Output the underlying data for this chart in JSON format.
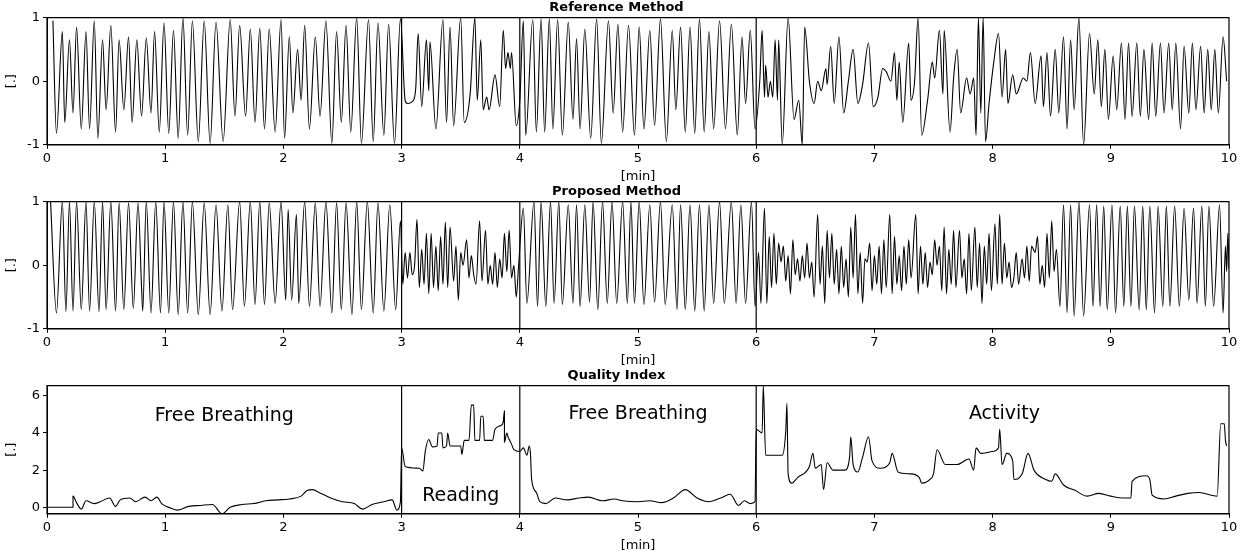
{
  "chart_data": [
    {
      "type": "line",
      "title": "Reference Method",
      "xlabel": "[min]",
      "ylabel": "[.]",
      "color": "#000000",
      "marker": "none",
      "grid": false,
      "xlim": [
        0,
        10
      ],
      "xticks": [
        0,
        1,
        2,
        3,
        4,
        5,
        6,
        7,
        8,
        9,
        10
      ],
      "ylim": [
        -1,
        1
      ],
      "yticks": [
        -1,
        0,
        1
      ],
      "ref_lines": [
        {
          "axis": "x",
          "value": 3
        },
        {
          "axis": "x",
          "value": 4
        },
        {
          "axis": "x",
          "value": 6
        }
      ],
      "x": [
        0.05,
        0.08,
        0.13,
        0.15,
        0.19,
        0.22,
        0.25,
        0.29,
        0.33,
        0.36,
        0.4,
        0.43,
        0.47,
        0.5,
        0.54,
        0.58,
        0.61,
        0.65,
        0.69,
        0.72,
        0.76,
        0.8,
        0.84,
        0.88,
        0.91,
        0.95,
        0.99,
        1.03,
        1.07,
        1.11,
        1.15,
        1.19,
        1.23,
        1.28,
        1.33,
        1.38,
        1.43,
        1.49,
        1.55,
        1.59,
        1.63,
        1.68,
        1.72,
        1.76,
        1.8,
        1.84,
        1.88,
        1.93,
        1.98,
        2.01,
        2.05,
        2.08,
        2.12,
        2.15,
        2.18,
        2.22,
        2.27,
        2.31,
        2.36,
        2.41,
        2.45,
        2.49,
        2.53,
        2.57,
        2.62,
        2.66,
        2.72,
        2.76,
        2.8,
        2.85,
        2.89,
        2.94,
        2.99,
        3.03,
        3.05,
        3.1,
        3.12,
        3.14,
        3.17,
        3.21,
        3.23,
        3.24,
        3.29,
        3.35,
        3.38,
        3.41,
        3.44,
        3.5,
        3.53,
        3.58,
        3.62,
        3.64,
        3.67,
        3.69,
        3.72,
        3.74,
        3.79,
        3.83,
        3.86,
        3.88,
        3.9,
        3.92,
        3.93,
        3.97,
        4.0,
        4.03,
        4.05,
        4.11,
        4.14,
        4.18,
        4.21,
        4.25,
        4.28,
        4.32,
        4.36,
        4.41,
        4.45,
        4.48,
        4.51,
        4.55,
        4.6,
        4.65,
        4.69,
        4.75,
        4.79,
        4.83,
        4.87,
        4.92,
        4.97,
        5.01,
        5.05,
        5.1,
        5.14,
        5.19,
        5.24,
        5.29,
        5.32,
        5.36,
        5.4,
        5.44,
        5.48,
        5.52,
        5.56,
        5.6,
        5.64,
        5.69,
        5.74,
        5.79,
        5.84,
        5.88,
        5.91,
        5.95,
        5.99,
        6.03,
        6.05,
        6.07,
        6.08,
        6.1,
        6.12,
        6.14,
        6.16,
        6.18,
        6.19,
        6.22,
        6.27,
        6.32,
        6.36,
        6.39,
        6.41,
        6.45,
        6.49,
        6.52,
        6.55,
        6.59,
        6.6,
        6.63,
        6.66,
        6.7,
        6.74,
        6.78,
        6.82,
        6.86,
        6.9,
        6.95,
        6.99,
        7.03,
        7.07,
        7.1,
        7.14,
        7.17,
        7.19,
        7.21,
        7.24,
        7.29,
        7.31,
        7.34,
        7.37,
        7.4,
        7.45,
        7.49,
        7.51,
        7.55,
        7.58,
        7.59,
        7.64,
        7.67,
        7.7,
        7.73,
        7.78,
        7.81,
        7.84,
        7.86,
        7.88,
        7.9,
        7.92,
        7.94,
        7.97,
        8.01,
        8.05,
        8.08,
        8.11,
        8.13,
        8.17,
        8.2,
        8.26,
        8.29,
        8.32,
        8.36,
        8.41,
        8.43,
        8.46,
        8.49,
        8.53,
        8.56,
        8.6,
        8.63,
        8.66,
        8.69,
        8.73,
        8.77,
        8.82,
        8.86,
        8.89,
        8.92,
        8.95,
        8.98,
        9.02,
        9.05,
        9.09,
        9.12,
        9.15,
        9.18,
        9.22,
        9.25,
        9.28,
        9.32,
        9.35,
        9.38,
        9.42,
        9.45,
        9.49,
        9.52,
        9.55,
        9.59,
        9.62,
        9.66,
        9.69,
        9.72,
        9.76,
        9.79,
        9.82,
        9.85,
        9.88,
        9.91,
        9.95,
        9.98
      ],
      "values": [
        0.95,
        -0.82,
        0.78,
        -0.65,
        0.65,
        -0.5,
        0.85,
        -0.75,
        0.78,
        -0.75,
        0.95,
        -0.9,
        0.65,
        -0.45,
        0.88,
        -0.8,
        0.65,
        -0.45,
        0.7,
        -0.65,
        0.65,
        -0.55,
        0.68,
        -0.5,
        0.78,
        -0.8,
        0.92,
        -0.82,
        0.8,
        -0.9,
        1.0,
        -0.85,
        0.95,
        -0.95,
        0.95,
        -0.98,
        0.93,
        -0.95,
        0.97,
        -0.55,
        0.88,
        -0.55,
        0.82,
        -0.65,
        0.83,
        -0.75,
        0.82,
        -0.8,
        0.97,
        -0.9,
        0.7,
        -0.5,
        0.5,
        -0.3,
        0.88,
        -0.75,
        0.7,
        -0.55,
        0.95,
        -0.98,
        0.78,
        -0.65,
        0.88,
        -0.8,
        1.0,
        -0.98,
        0.97,
        -0.95,
        0.92,
        -0.85,
        0.9,
        -0.98,
        0.98,
        -0.3,
        -0.35,
        -0.3,
        -0.1,
        0.75,
        -0.4,
        0.65,
        -0.15,
        0.62,
        -0.75,
        0.97,
        -0.65,
        0.85,
        -0.7,
        1.0,
        -0.65,
        -0.2,
        1.0,
        -0.3,
        0.65,
        -0.45,
        -0.25,
        -0.45,
        0.1,
        -0.4,
        0.8,
        0.2,
        0.45,
        0.2,
        0.45,
        -0.7,
        -0.3,
        0.95,
        -0.85,
        0.97,
        -0.8,
        0.98,
        -0.8,
        0.98,
        -0.75,
        0.97,
        -0.85,
        0.93,
        -0.6,
        0.67,
        -0.75,
        0.82,
        -0.9,
        0.98,
        -0.98,
        0.95,
        -0.5,
        0.9,
        -0.8,
        0.88,
        -0.85,
        0.85,
        -0.75,
        0.8,
        -0.7,
        0.98,
        -0.95,
        0.8,
        -0.45,
        0.85,
        -0.8,
        0.85,
        -0.82,
        0.98,
        -0.8,
        0.78,
        -0.75,
        0.95,
        -0.75,
        0.9,
        -0.85,
        0.7,
        -0.35,
        0.8,
        -0.75,
        0.0,
        0.8,
        -0.25,
        0.25,
        -0.25,
        0.0,
        -0.25,
        0.65,
        -0.3,
        0.65,
        -1.0,
        1.0,
        -0.6,
        -0.3,
        -1.0,
        0.85,
        0.0,
        -0.35,
        0.0,
        -0.15,
        0.2,
        -0.05,
        0.55,
        -0.35,
        0.7,
        -0.5,
        0.0,
        0.5,
        -0.35,
        -0.05,
        0.6,
        -0.4,
        -0.25,
        0.2,
        0.15,
        0.0,
        0.45,
        -0.3,
        0.3,
        -0.65,
        0.6,
        -0.3,
        0.0,
        1.0,
        -0.85,
        -0.3,
        0.3,
        0.05,
        0.8,
        -0.2,
        0.8,
        -0.8,
        0.05,
        0.5,
        -0.5,
        0.05,
        -0.2,
        0.05,
        -0.85,
        1.0,
        -0.5,
        1.0,
        -0.95,
        -0.35,
        0.3,
        0.75,
        -0.25,
        0.5,
        -0.35,
        0.1,
        -0.2,
        0.05,
        0.0,
        0.45,
        -0.35,
        0.4,
        -0.4,
        0.45,
        -0.55,
        0.5,
        -0.5,
        0.7,
        -0.75,
        0.65,
        -0.45,
        1.0,
        -1.0,
        0.75,
        -0.2,
        0.65,
        -0.4,
        0.5,
        -0.6,
        0.4,
        -0.45,
        0.6,
        -0.6,
        0.6,
        -0.55,
        0.6,
        -0.55,
        0.5,
        -0.6,
        0.6,
        -0.55,
        0.6,
        -0.5,
        0.6,
        -0.45,
        0.6,
        -0.75,
        0.55,
        -0.5,
        0.6,
        -0.45,
        0.55,
        -0.5,
        0.5,
        -0.45,
        0.5,
        -0.5,
        0.7,
        0.0
      ]
    },
    {
      "type": "line",
      "title": "Proposed Method",
      "xlabel": "[min]",
      "ylabel": "[.]",
      "color": "#000000",
      "marker": "none",
      "grid": false,
      "xlim": [
        0,
        10
      ],
      "xticks": [
        0,
        1,
        2,
        3,
        4,
        5,
        6,
        7,
        8,
        9,
        10
      ],
      "ylim": [
        -1,
        1
      ],
      "yticks": [
        -1,
        0,
        1
      ],
      "ref_lines": [
        {
          "axis": "x",
          "value": 3
        },
        {
          "axis": "x",
          "value": 4
        },
        {
          "axis": "x",
          "value": 6
        }
      ],
      "x": [
        0.03,
        0.08,
        0.13,
        0.16,
        0.19,
        0.22,
        0.25,
        0.29,
        0.33,
        0.36,
        0.4,
        0.44,
        0.47,
        0.5,
        0.54,
        0.58,
        0.61,
        0.65,
        0.69,
        0.73,
        0.77,
        0.8,
        0.81,
        0.84,
        0.88,
        0.92,
        0.96,
        0.99,
        1.03,
        1.07,
        1.11,
        1.15,
        1.19,
        1.23,
        1.28,
        1.33,
        1.38,
        1.43,
        1.48,
        1.53,
        1.57,
        1.63,
        1.67,
        1.72,
        1.76,
        1.8,
        1.84,
        1.88,
        1.93,
        1.98,
        2.02,
        2.04,
        2.07,
        2.11,
        2.13,
        2.18,
        2.22,
        2.27,
        2.31,
        2.36,
        2.41,
        2.45,
        2.49,
        2.53,
        2.58,
        2.62,
        2.66,
        2.71,
        2.76,
        2.8,
        2.85,
        2.9,
        2.95,
        2.99,
        3.01,
        3.03,
        3.05,
        3.07,
        3.09,
        3.11,
        3.13,
        3.15,
        3.17,
        3.19,
        3.21,
        3.23,
        3.25,
        3.27,
        3.29,
        3.31,
        3.33,
        3.35,
        3.37,
        3.39,
        3.41,
        3.44,
        3.46,
        3.48,
        3.5,
        3.52,
        3.55,
        3.57,
        3.59,
        3.61,
        3.63,
        3.66,
        3.68,
        3.71,
        3.73,
        3.75,
        3.77,
        3.79,
        3.81,
        3.83,
        3.85,
        3.87,
        3.89,
        3.91,
        3.93,
        3.95,
        3.97,
        3.99,
        4.03,
        4.06,
        4.12,
        4.15,
        4.18,
        4.22,
        4.26,
        4.29,
        4.33,
        4.36,
        4.41,
        4.45,
        4.48,
        4.51,
        4.55,
        4.59,
        4.62,
        4.66,
        4.7,
        4.74,
        4.78,
        4.82,
        4.87,
        4.91,
        4.94,
        4.97,
        5.01,
        5.05,
        5.1,
        5.14,
        5.19,
        5.23,
        5.29,
        5.33,
        5.36,
        5.4,
        5.44,
        5.48,
        5.52,
        5.56,
        5.6,
        5.64,
        5.69,
        5.73,
        5.79,
        5.83,
        5.87,
        5.91,
        5.96,
        5.99,
        6.02,
        6.04,
        6.07,
        6.09,
        6.11,
        6.13,
        6.15,
        6.17,
        6.19,
        6.21,
        6.23,
        6.25,
        6.27,
        6.29,
        6.31,
        6.33,
        6.35,
        6.37,
        6.39,
        6.41,
        6.43,
        6.45,
        6.47,
        6.49,
        6.52,
        6.54,
        6.56,
        6.58,
        6.6,
        6.62,
        6.64,
        6.66,
        6.68,
        6.7,
        6.72,
        6.74,
        6.76,
        6.78,
        6.8,
        6.82,
        6.84,
        6.86,
        6.88,
        6.9,
        6.92,
        6.94,
        6.96,
        6.98,
        7.0,
        7.02,
        7.04,
        7.06,
        7.08,
        7.1,
        7.13,
        7.15,
        7.17,
        7.19,
        7.21,
        7.23,
        7.25,
        7.27,
        7.29,
        7.31,
        7.35,
        7.37,
        7.39,
        7.41,
        7.43,
        7.45,
        7.47,
        7.49,
        7.51,
        7.53,
        7.55,
        7.57,
        7.59,
        7.61,
        7.63,
        7.65,
        7.67,
        7.69,
        7.72,
        7.74,
        7.76,
        7.78,
        7.8,
        7.82,
        7.85,
        7.87,
        7.89,
        7.91,
        7.93,
        7.95,
        7.97,
        7.99,
        8.02,
        8.04,
        8.06,
        8.08,
        8.1,
        8.12,
        8.14,
        8.16,
        8.18,
        8.2,
        8.22,
        8.25,
        8.27,
        8.29,
        8.31,
        8.33,
        8.36,
        8.38,
        8.4,
        8.42,
        8.44,
        8.46,
        8.48,
        8.5,
        8.52,
        8.54,
        8.57,
        8.6,
        8.63,
        8.66,
        8.69,
        8.73,
        8.77,
        8.82,
        8.85,
        8.88,
        8.91,
        8.94,
        8.97,
        9.01,
        9.04,
        9.08,
        9.11,
        9.14,
        9.17,
        9.2,
        9.24,
        9.27,
        9.3,
        9.33,
        9.37,
        9.4,
        9.44,
        9.47,
        9.5,
        9.54,
        9.58,
        9.62,
        9.66,
        9.7,
        9.73,
        9.77,
        9.8,
        9.83,
        9.87,
        9.92,
        9.95,
        9.97,
        9.98,
        9.99,
        10.0
      ],
      "values": [
        1.0,
        -0.75,
        1.0,
        -0.73,
        1.0,
        -0.72,
        1.0,
        -0.7,
        1.0,
        -0.72,
        1.0,
        -0.73,
        1.0,
        -0.7,
        1.0,
        -0.72,
        0.98,
        -0.7,
        0.98,
        -0.68,
        0.98,
        -0.35,
        -0.72,
        1.0,
        -0.75,
        1.0,
        -0.75,
        1.0,
        -0.75,
        1.0,
        -0.78,
        1.0,
        -0.75,
        1.0,
        -0.78,
        0.98,
        -0.78,
        0.95,
        -0.72,
        0.95,
        -0.7,
        1.0,
        -0.65,
        1.0,
        -0.62,
        1.0,
        -0.62,
        0.98,
        -0.6,
        1.0,
        -0.55,
        0.88,
        -0.55,
        0.8,
        -0.6,
        1.0,
        -0.65,
        0.98,
        -0.65,
        1.0,
        -0.75,
        0.98,
        -0.7,
        0.98,
        -0.78,
        1.0,
        -0.7,
        1.0,
        -0.75,
        0.98,
        -0.72,
        0.95,
        -0.7,
        0.7,
        -0.3,
        0.2,
        -0.2,
        0.2,
        -0.15,
        0.0,
        0.72,
        -0.35,
        0.25,
        -0.3,
        0.5,
        -0.45,
        0.5,
        -0.35,
        0.3,
        -0.4,
        0.45,
        -0.3,
        0.68,
        -0.35,
        0.6,
        -0.25,
        0.3,
        -0.55,
        0.2,
        0.0,
        0.4,
        -0.2,
        0.15,
        -0.15,
        -0.3,
        0.7,
        -0.25,
        0.55,
        -0.3,
        0.0,
        -0.3,
        0.2,
        -0.35,
        0.1,
        -0.2,
        0.5,
        -0.1,
        0.55,
        -0.2,
        0.0,
        -0.5,
        0.0,
        0.9,
        -0.6,
        1.0,
        -0.65,
        1.0,
        -0.65,
        1.0,
        -0.6,
        1.0,
        -0.62,
        0.95,
        -0.6,
        0.95,
        -0.65,
        0.95,
        -0.58,
        1.0,
        -0.7,
        1.0,
        -0.6,
        1.0,
        -0.6,
        1.0,
        -0.6,
        1.0,
        -0.6,
        1.0,
        -0.62,
        0.95,
        -0.58,
        1.0,
        -0.62,
        0.95,
        -0.7,
        0.95,
        -0.7,
        0.95,
        -0.72,
        0.95,
        -0.72,
        0.95,
        -0.6,
        1.0,
        -0.6,
        1.0,
        -0.6,
        0.95,
        -0.6,
        1.0,
        -0.65,
        0.2,
        -0.6,
        0.9,
        -0.6,
        0.45,
        -0.35,
        0.5,
        -0.3,
        0.35,
        0.05,
        0.3,
        -0.25,
        0.15,
        -0.45,
        0.4,
        -0.15,
        0.1,
        -0.25,
        0.15,
        -0.2,
        0.35,
        -0.2,
        0.05,
        -0.5,
        0.8,
        -0.3,
        0.3,
        -0.6,
        0.55,
        -0.2,
        0.5,
        -0.3,
        0.25,
        -0.45,
        0.3,
        -0.35,
        0.1,
        -0.5,
        0.6,
        -0.2,
        0.8,
        -0.45,
        0.2,
        -0.6,
        0.1,
        0.05,
        0.35,
        -0.4,
        0.15,
        -0.3,
        0.3,
        -0.45,
        0.4,
        -0.35,
        0.8,
        -0.45,
        0.45,
        -0.3,
        0.15,
        -0.4,
        0.3,
        -0.3,
        0.4,
        -0.2,
        0.8,
        -0.45,
        0.3,
        -0.3,
        0.2,
        -0.35,
        0.05,
        -0.15,
        0.4,
        0.0,
        0.3,
        -0.4,
        0.6,
        -0.45,
        0.25,
        -0.3,
        0.55,
        -0.35,
        0.55,
        -0.2,
        0.1,
        -0.45,
        0.5,
        -0.4,
        0.6,
        -0.35,
        0.35,
        -0.6,
        0.3,
        -0.3,
        0.5,
        -0.4,
        0.65,
        -0.3,
        0.8,
        -0.3,
        0.35,
        -0.2,
        0.05,
        -0.35,
        -0.2,
        0.2,
        -0.3,
        0.1,
        -0.2,
        0.3,
        -0.25,
        0.3,
        0.2,
        0.45,
        -0.3,
        0.0,
        -0.35,
        0.5,
        -0.2,
        0.7,
        -0.1,
        0.25,
        -0.65,
        0.95,
        -0.75,
        0.95,
        -0.8,
        1.0,
        -0.8,
        0.95,
        -0.65,
        0.95,
        -0.65,
        0.93,
        -0.7,
        0.95,
        -0.75,
        0.93,
        -0.65,
        0.93,
        -0.65,
        0.93,
        -0.7,
        0.93,
        -0.7,
        0.93,
        -0.75,
        0.93,
        -0.65,
        0.93,
        -0.65,
        0.93,
        -0.65,
        0.9,
        -0.55,
        0.9,
        -0.6,
        0.93,
        -0.65,
        0.93,
        -0.65,
        0.95,
        -0.75,
        0.3,
        -0.1,
        0.5,
        -0.05
      ]
    },
    {
      "type": "line",
      "title": "Quality Index",
      "xlabel": "[min]",
      "ylabel": "[.]",
      "color": "#000000",
      "marker": "none",
      "grid": false,
      "xlim": [
        0,
        10
      ],
      "xticks": [
        0,
        1,
        2,
        3,
        4,
        5,
        6,
        7,
        8,
        9,
        10
      ],
      "ylim": [
        -0.35,
        6.55
      ],
      "yticks": [
        0,
        2,
        4,
        6
      ],
      "ref_lines": [
        {
          "axis": "x",
          "value": 3
        },
        {
          "axis": "x",
          "value": 4
        },
        {
          "axis": "x",
          "value": 6
        }
      ],
      "annotations": [
        "Free Breathing",
        "Reading",
        "Free Breathing",
        "Activity"
      ],
      "x": [
        0,
        0.22,
        0.22,
        0.25,
        0.29,
        0.33,
        0.4,
        0.45,
        0.53,
        0.58,
        0.62,
        0.7,
        0.75,
        0.83,
        0.88,
        0.93,
        0.97,
        1.05,
        1.1,
        1.2,
        1.3,
        1.4,
        1.48,
        1.55,
        1.65,
        1.75,
        1.85,
        1.95,
        2.05,
        2.15,
        2.2,
        2.25,
        2.3,
        2.4,
        2.5,
        2.6,
        2.67,
        2.75,
        2.85,
        2.92,
        2.96,
        2.99,
        3.0,
        3.03,
        3.15,
        3.18,
        3.2,
        3.23,
        3.26,
        3.3,
        3.31,
        3.34,
        3.35,
        3.38,
        3.39,
        3.41,
        3.5,
        3.51,
        3.53,
        3.57,
        3.59,
        3.61,
        3.62,
        3.66,
        3.67,
        3.69,
        3.7,
        3.77,
        3.79,
        3.84,
        3.86,
        3.87,
        3.87,
        3.89,
        3.9,
        3.93,
        3.95,
        4.0,
        4.03,
        4.06,
        4.08,
        4.09,
        4.1,
        4.14,
        4.17,
        4.22,
        4.3,
        4.4,
        4.5,
        4.58,
        4.7,
        4.8,
        4.87,
        5.0,
        5.1,
        5.2,
        5.3,
        5.4,
        5.5,
        5.6,
        5.7,
        5.78,
        5.85,
        5.9,
        5.95,
        5.99,
        6.0,
        6.05,
        6.06,
        6.08,
        6.22,
        6.25,
        6.26,
        6.27,
        6.3,
        6.35,
        6.45,
        6.48,
        6.5,
        6.55,
        6.57,
        6.6,
        6.65,
        6.75,
        6.79,
        6.8,
        6.82,
        6.86,
        6.9,
        6.95,
        6.98,
        7.05,
        7.13,
        7.15,
        7.2,
        7.3,
        7.38,
        7.4,
        7.47,
        7.5,
        7.53,
        7.6,
        7.7,
        7.8,
        7.84,
        7.86,
        7.9,
        8.0,
        8.05,
        8.06,
        8.08,
        8.12,
        8.17,
        8.18,
        8.25,
        8.3,
        8.35,
        8.45,
        8.5,
        8.53,
        8.6,
        8.7,
        8.8,
        8.9,
        9.0,
        9.1,
        9.17,
        9.18,
        9.3,
        9.33,
        9.35,
        9.45,
        9.55,
        9.65,
        9.75,
        9.85,
        9.9,
        9.93,
        9.96,
        9.97,
        9.98
      ],
      "values": [
        0,
        0,
        0.6,
        0.25,
        -0.1,
        0.35,
        0.2,
        0.3,
        0.5,
        0.05,
        0.4,
        0.5,
        0.3,
        0.55,
        0.35,
        0.55,
        0.2,
        -0.05,
        -0.15,
        0.05,
        0.1,
        0.15,
        -0.35,
        0.0,
        0.15,
        0.2,
        0.35,
        0.4,
        0.45,
        0.6,
        0.9,
        0.95,
        0.8,
        0.5,
        0.3,
        0.2,
        -0.1,
        0.15,
        0.3,
        0.4,
        -0.15,
        0.3,
        3.2,
        2.2,
        2.1,
        1.95,
        3.0,
        3.65,
        3.25,
        3.3,
        4.0,
        4.0,
        3.2,
        3.3,
        4.0,
        3.3,
        3.3,
        2.85,
        3.6,
        3.6,
        5.5,
        5.5,
        3.6,
        3.6,
        4.9,
        4.9,
        3.6,
        3.6,
        4.2,
        4.4,
        4.6,
        5.2,
        3.5,
        4.0,
        3.8,
        3.4,
        3.1,
        3.0,
        3.2,
        2.8,
        3.3,
        2.9,
        1.5,
        0.8,
        0.3,
        0.2,
        0.5,
        0.4,
        0.5,
        0.55,
        0.35,
        0.45,
        0.35,
        0.3,
        0.35,
        0.25,
        0.5,
        0.95,
        0.5,
        0.3,
        0.5,
        0.7,
        0.1,
        0.35,
        0.2,
        0.3,
        4.2,
        4.0,
        6.55,
        2.8,
        2.8,
        4.1,
        5.6,
        1.8,
        1.3,
        1.6,
        2.2,
        2.9,
        2.1,
        2.3,
        0.95,
        2.4,
        2.0,
        2.0,
        2.7,
        3.8,
        2.3,
        1.9,
        2.7,
        3.8,
        2.5,
        2.1,
        2.4,
        2.9,
        1.9,
        1.8,
        1.6,
        1.3,
        1.5,
        1.8,
        3.1,
        2.3,
        2.3,
        2.6,
        2.0,
        3.2,
        2.9,
        3.0,
        3.2,
        4.2,
        2.3,
        2.9,
        2.5,
        1.5,
        1.8,
        2.9,
        2.0,
        1.5,
        1.4,
        1.8,
        1.2,
        0.9,
        0.6,
        0.75,
        0.6,
        0.5,
        0.5,
        1.4,
        1.7,
        1.5,
        0.65,
        0.45,
        0.6,
        0.75,
        0.8,
        0.65,
        0.6,
        4.5,
        4.5,
        3.6,
        3.3
      ]
    }
  ]
}
